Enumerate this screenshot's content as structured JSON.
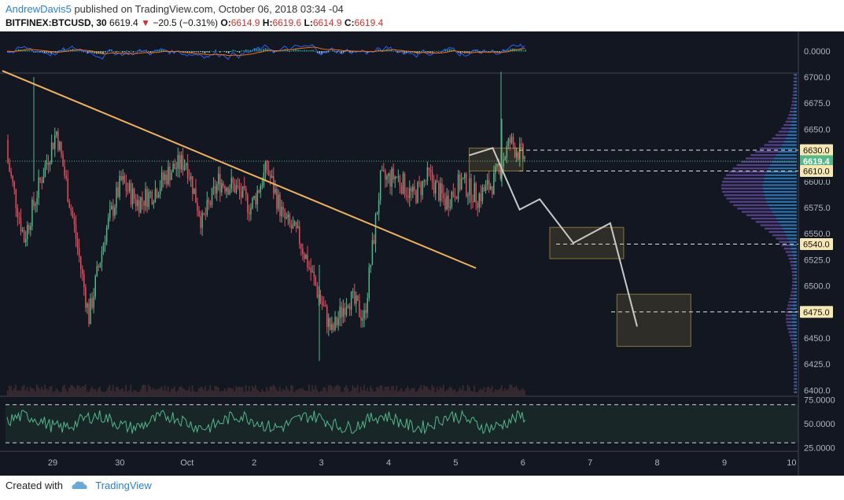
{
  "header": {
    "author": "AndrewDavis5",
    "published": "published on TradingView.com, October 06, 2018 03:34 -04",
    "symbol": "BITFINEX:BTCUSD, 30",
    "last": "6619.4",
    "change": "−20.5 (−0.31%)",
    "o_label": "O:",
    "o": "6614.9",
    "h_label": "H:",
    "h": "6619.6",
    "l_label": "L:",
    "l": "6614.9",
    "c_label": "C:",
    "c": "6619.4"
  },
  "footer": {
    "created": "Created with",
    "brand": "TradingView"
  },
  "colors": {
    "bg": "#131722",
    "up": "#53b987",
    "down": "#eb4d5c",
    "trend": "#f5b25c",
    "projection": "#c9c9c9",
    "box": "#cfae4a"
  },
  "chart_data": {
    "type": "candlestick",
    "timeframe": "30",
    "x_ticks": [
      "29",
      "30",
      "Oct",
      "2",
      "3",
      "4",
      "5",
      "6",
      "7",
      "8",
      "9",
      "10"
    ],
    "y_ticks": [
      "6700.0",
      "6675.0",
      "6650.0",
      "6625.0",
      "6600.0",
      "6575.0",
      "6550.0",
      "6525.0",
      "6500.0",
      "6475.0",
      "6450.0",
      "6425.0",
      "6400.0"
    ],
    "ylim": [
      6395,
      6703
    ],
    "price_labels": [
      "6630.0",
      "6619.4",
      "25:28",
      "6610.0",
      "6540.0",
      "6475.0"
    ],
    "levels": [
      6630,
      6610,
      6540,
      6475
    ],
    "last_price": 6619.4,
    "ohlc": [
      [
        6640,
        6695,
        6610,
        6618
      ],
      [
        6618,
        6660,
        6520,
        6545
      ],
      [
        6545,
        6610,
        6490,
        6600
      ],
      [
        6600,
        6660,
        6560,
        6648
      ],
      [
        6648,
        6660,
        6530,
        6565
      ],
      [
        6565,
        6590,
        6430,
        6470
      ],
      [
        6470,
        6560,
        6450,
        6550
      ],
      [
        6550,
        6620,
        6520,
        6600
      ],
      [
        6600,
        6650,
        6550,
        6580
      ],
      [
        6580,
        6630,
        6560,
        6590
      ],
      [
        6590,
        6640,
        6565,
        6610
      ],
      [
        6610,
        6655,
        6590,
        6620
      ],
      [
        6620,
        6625,
        6525,
        6560
      ],
      [
        6560,
        6610,
        6540,
        6600
      ],
      [
        6600,
        6615,
        6575,
        6595
      ],
      [
        6595,
        6613,
        6555,
        6575
      ],
      [
        6575,
        6620,
        6565,
        6613
      ],
      [
        6613,
        6620,
        6545,
        6565
      ],
      [
        6565,
        6575,
        6500,
        6545
      ],
      [
        6545,
        6558,
        6470,
        6500
      ],
      [
        6500,
        6545,
        6425,
        6455
      ],
      [
        6455,
        6510,
        6445,
        6490
      ],
      [
        6490,
        6510,
        6450,
        6470
      ],
      [
        6470,
        6630,
        6450,
        6600
      ],
      [
        6600,
        6630,
        6575,
        6605
      ],
      [
        6605,
        6620,
        6570,
        6585
      ],
      [
        6585,
        6620,
        6560,
        6605
      ],
      [
        6605,
        6620,
        6550,
        6580
      ],
      [
        6580,
        6625,
        6545,
        6600
      ],
      [
        6600,
        6615,
        6570,
        6585
      ],
      [
        6585,
        6610,
        6575,
        6600
      ],
      [
        6600,
        6705,
        6595,
        6638
      ],
      [
        6638,
        6650,
        6610,
        6620
      ]
    ],
    "rsi": {
      "ylim": [
        22,
        78
      ],
      "ticks": [
        "75.0000",
        "50.0000",
        "25.0000"
      ],
      "bands": [
        70,
        30
      ]
    },
    "macd": {
      "ticks": [
        "0.0000"
      ]
    },
    "trendline": [
      [
        0.25,
        6706
      ],
      [
        7.3,
        6517
      ]
    ],
    "projection": [
      [
        7.2,
        6625
      ],
      [
        7.55,
        6632
      ],
      [
        7.95,
        6573
      ],
      [
        8.25,
        6583
      ],
      [
        8.75,
        6541
      ],
      [
        9.3,
        6560
      ],
      [
        9.7,
        6461
      ]
    ],
    "boxes": [
      [
        7.2,
        8.0,
        6632,
        6610
      ],
      [
        8.4,
        9.5,
        6556,
        6526
      ],
      [
        9.4,
        10.5,
        6492,
        6442
      ]
    ]
  }
}
